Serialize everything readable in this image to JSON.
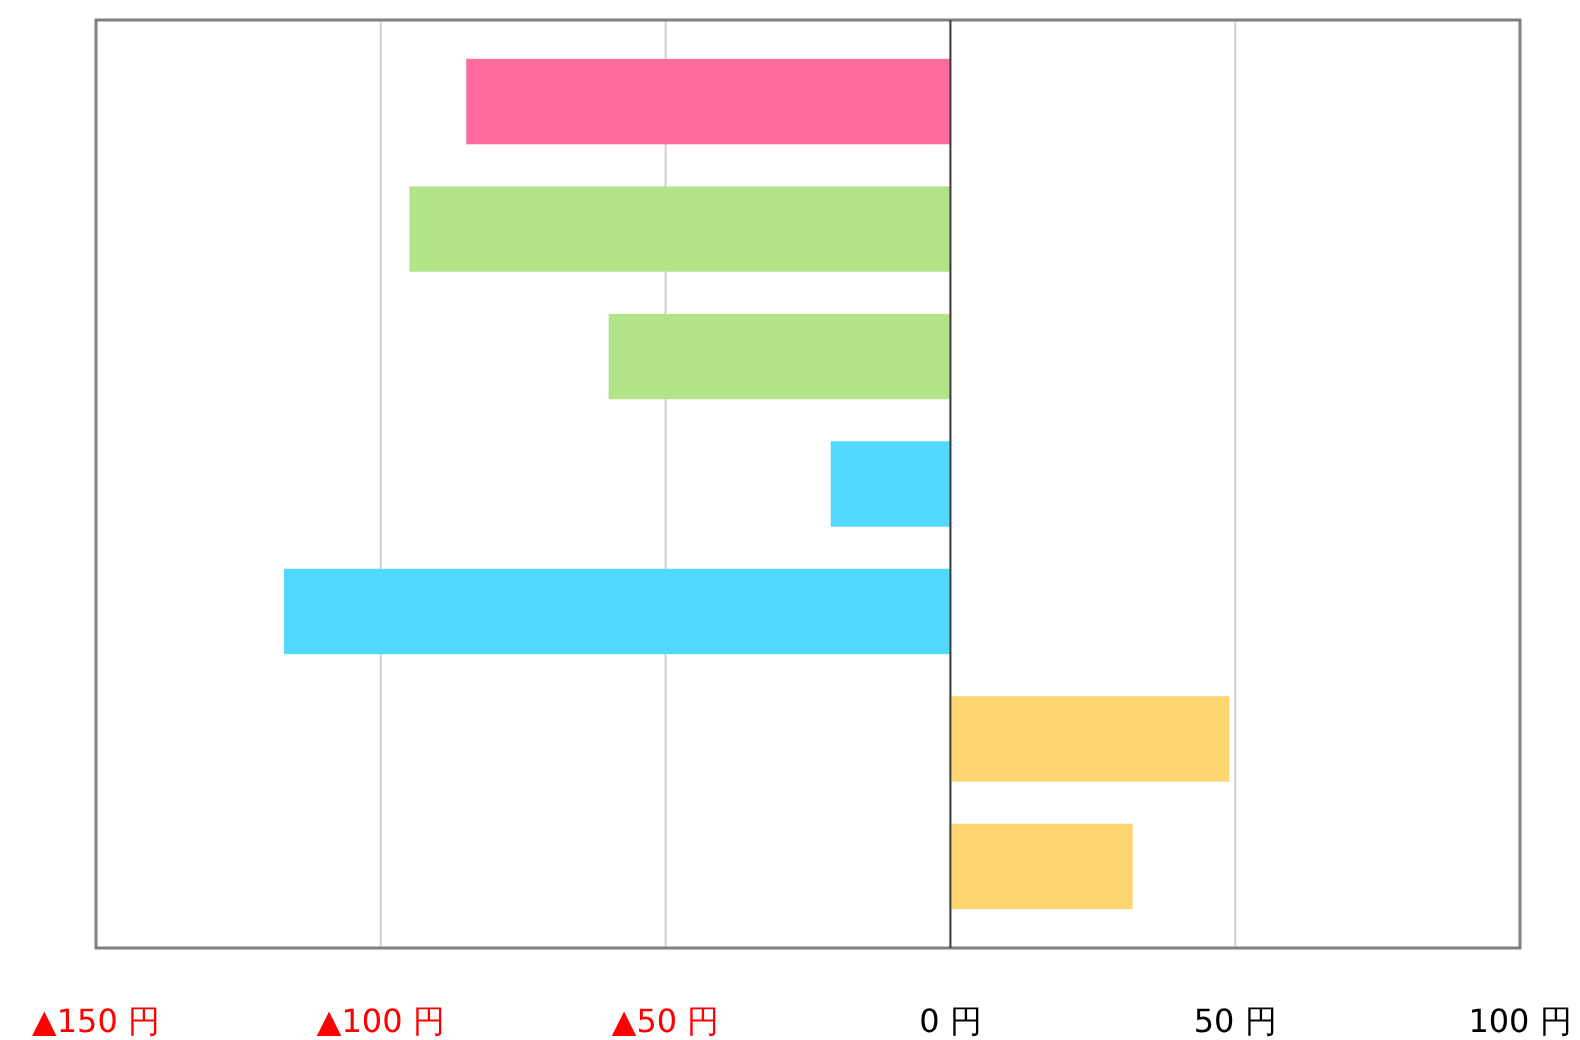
{
  "chart_data": {
    "type": "bar",
    "orientation": "horizontal",
    "categories": [
      null,
      null,
      null,
      null,
      null,
      null,
      null
    ],
    "values": [
      -85,
      -95,
      -60,
      -21,
      -117,
      49,
      32
    ],
    "colors": [
      "#ff6b9a",
      "#b3e48a",
      "#b3e48a",
      "#52d8ff",
      "#52d8ff",
      "#fdd571",
      "#fdd571"
    ],
    "xlim": [
      -150,
      100
    ],
    "xticks": [
      {
        "value": -150,
        "label": "▲150 円"
      },
      {
        "value": -100,
        "label": "▲100 円"
      },
      {
        "value": -50,
        "label": "▲50 円"
      },
      {
        "value": 0,
        "label": "0 円"
      },
      {
        "value": 50,
        "label": "50 円"
      },
      {
        "value": 100,
        "label": "100 円"
      }
    ],
    "grid": "x"
  }
}
